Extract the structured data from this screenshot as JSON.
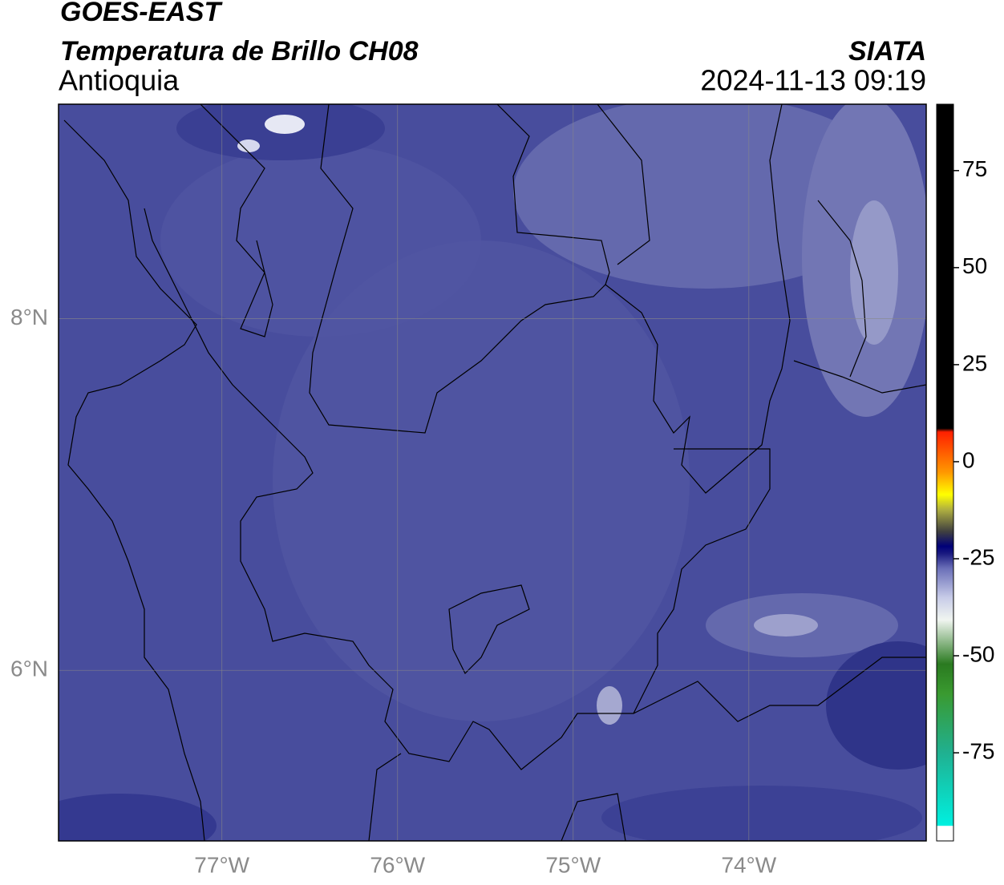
{
  "header": {
    "title": "GOES-EAST",
    "subtitle": "Temperatura de Brillo CH08",
    "source": "SIATA",
    "region": "Antioquia",
    "datetime": "2024-11-13 09:19"
  },
  "map": {
    "xlim": [
      -77.93,
      -72.99
    ],
    "ylim": [
      5.03,
      9.22
    ],
    "xticks": [
      {
        "value": -77,
        "label": "77°W"
      },
      {
        "value": -76,
        "label": "76°W"
      },
      {
        "value": -75,
        "label": "75°W"
      },
      {
        "value": -74,
        "label": "74°W"
      }
    ],
    "yticks": [
      {
        "value": 8,
        "label": "8°N"
      },
      {
        "value": 6,
        "label": "6°N"
      }
    ],
    "grid": true
  },
  "colorbar": {
    "lim": [
      -97.7,
      92.1
    ],
    "ticks": [
      75,
      50,
      25,
      0,
      -25,
      -50,
      -75
    ]
  }
}
